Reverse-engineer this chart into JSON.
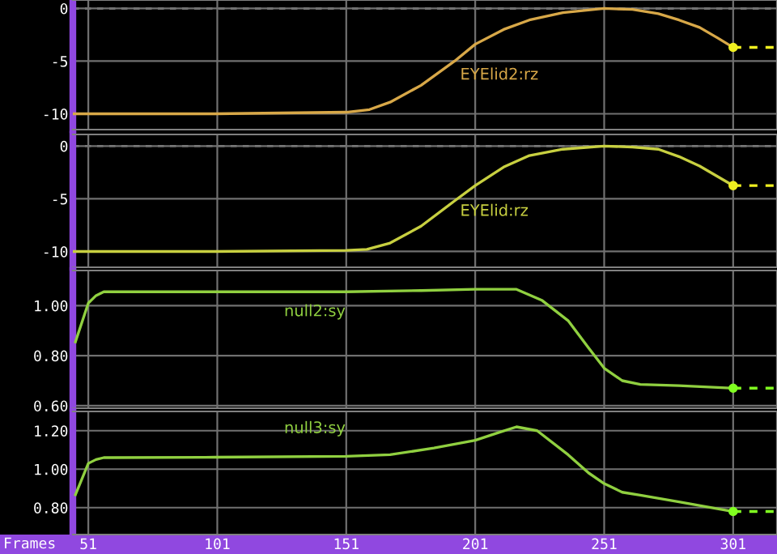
{
  "chart_data": [
    {
      "type": "line",
      "xlim": [
        45,
        318
      ],
      "ylim": [
        -11.5,
        0.8
      ],
      "yticks": [
        -10,
        -5,
        0
      ],
      "xticks": [
        51,
        101,
        151,
        201,
        251,
        301
      ],
      "grid": true,
      "tick_labels": "y",
      "ref_lines": [
        {
          "axis": "y",
          "value": 0,
          "line_style": "dashed",
          "color": "#a0a0a0"
        }
      ],
      "series": [
        {
          "name": "EYElid2:rz",
          "color": "#d8a848",
          "type": "line",
          "x": [
            45,
            60,
            100,
            151,
            160,
            168,
            180,
            193,
            201,
            212,
            222,
            235,
            251,
            262,
            272,
            280,
            288,
            295,
            301
          ],
          "values": [
            -10,
            -10,
            -10,
            -9.85,
            -9.6,
            -8.9,
            -7.3,
            -5.0,
            -3.4,
            -2.0,
            -1.1,
            -0.4,
            0,
            -0.1,
            -0.5,
            -1.1,
            -1.8,
            -2.8,
            -3.7
          ]
        },
        {
          "color": "#f0f020",
          "type": "line",
          "line_style": "dashed",
          "x": [
            301,
            318
          ],
          "values": [
            -3.7,
            -3.7
          ]
        },
        {
          "color": "#f0f020",
          "type": "scatter",
          "x": [
            301
          ],
          "values": [
            -3.7
          ]
        }
      ]
    },
    {
      "type": "line",
      "xlim": [
        45,
        318
      ],
      "ylim": [
        -11.5,
        1.1
      ],
      "yticks": [
        -10,
        -5,
        0
      ],
      "xticks": [
        51,
        101,
        151,
        201,
        251,
        301
      ],
      "grid": true,
      "tick_labels": "y",
      "ref_lines": [
        {
          "axis": "y",
          "value": 0,
          "line_style": "dashed",
          "color": "#a0a0a0"
        }
      ],
      "series": [
        {
          "name": "EYElid:rz",
          "color": "#c8d040",
          "type": "line",
          "x": [
            45,
            60,
            100,
            151,
            159,
            168,
            180,
            193,
            201,
            212,
            222,
            235,
            251,
            262,
            272,
            280,
            288,
            295,
            301
          ],
          "values": [
            -10,
            -10,
            -10,
            -9.9,
            -9.8,
            -9.2,
            -7.6,
            -5.2,
            -3.75,
            -2.0,
            -0.9,
            -0.3,
            0,
            -0.1,
            -0.3,
            -1.0,
            -1.9,
            -2.9,
            -3.75
          ]
        },
        {
          "color": "#f0f020",
          "type": "line",
          "line_style": "dashed",
          "x": [
            301,
            318
          ],
          "values": [
            -3.75,
            -3.75
          ]
        },
        {
          "color": "#f0f020",
          "type": "scatter",
          "x": [
            301
          ],
          "values": [
            -3.75
          ]
        }
      ]
    },
    {
      "type": "line",
      "xlim": [
        45,
        318
      ],
      "ylim": [
        0.59,
        1.14
      ],
      "yticks": [
        {
          "value": 0.6,
          "label": "0.60"
        },
        {
          "value": 0.8,
          "label": "0.80"
        },
        {
          "value": 1.0,
          "label": "1.00"
        }
      ],
      "xticks": [
        51,
        101,
        151,
        201,
        251,
        301
      ],
      "grid": true,
      "tick_labels": "y",
      "series": [
        {
          "name": "null2:sy",
          "color": "#90d040",
          "type": "line",
          "x": [
            46,
            51,
            54,
            57,
            60,
            100,
            151,
            180,
            201,
            217,
            227,
            237,
            245,
            251,
            258,
            265,
            280,
            301
          ],
          "values": [
            0.855,
            1.01,
            1.04,
            1.055,
            1.055,
            1.055,
            1.055,
            1.06,
            1.065,
            1.065,
            1.02,
            0.94,
            0.83,
            0.75,
            0.7,
            0.685,
            0.68,
            0.67
          ]
        },
        {
          "color": "#80ff20",
          "type": "line",
          "line_style": "dashed",
          "x": [
            301,
            318
          ],
          "values": [
            0.67,
            0.67
          ]
        },
        {
          "color": "#80ff20",
          "type": "scatter",
          "x": [
            301
          ],
          "values": [
            0.67
          ]
        }
      ]
    },
    {
      "type": "line",
      "xlim": [
        45,
        318
      ],
      "ylim": [
        0.66,
        1.3
      ],
      "yticks": [
        {
          "value": 0.8,
          "label": "0.80"
        },
        {
          "value": 1.0,
          "label": "1.00"
        },
        {
          "value": 1.2,
          "label": "1.20"
        }
      ],
      "xticks": [
        51,
        101,
        151,
        201,
        251,
        301
      ],
      "grid": true,
      "xlabel": "Frames",
      "series": [
        {
          "name": "null3:sy",
          "color": "#90d040",
          "type": "line",
          "x": [
            46,
            51,
            54,
            57,
            60,
            100,
            151,
            168,
            185,
            201,
            210,
            217,
            225,
            237,
            245,
            251,
            258,
            265,
            280,
            301
          ],
          "values": [
            0.867,
            1.03,
            1.05,
            1.06,
            1.06,
            1.062,
            1.067,
            1.075,
            1.11,
            1.15,
            1.19,
            1.22,
            1.2,
            1.075,
            0.98,
            0.925,
            0.88,
            0.865,
            0.83,
            0.78
          ]
        },
        {
          "color": "#80ff20",
          "type": "line",
          "line_style": "dashed",
          "x": [
            301,
            318
          ],
          "values": [
            0.78,
            0.78
          ]
        },
        {
          "color": "#80ff20",
          "type": "scatter",
          "x": [
            301
          ],
          "values": [
            0.78
          ]
        }
      ]
    }
  ]
}
